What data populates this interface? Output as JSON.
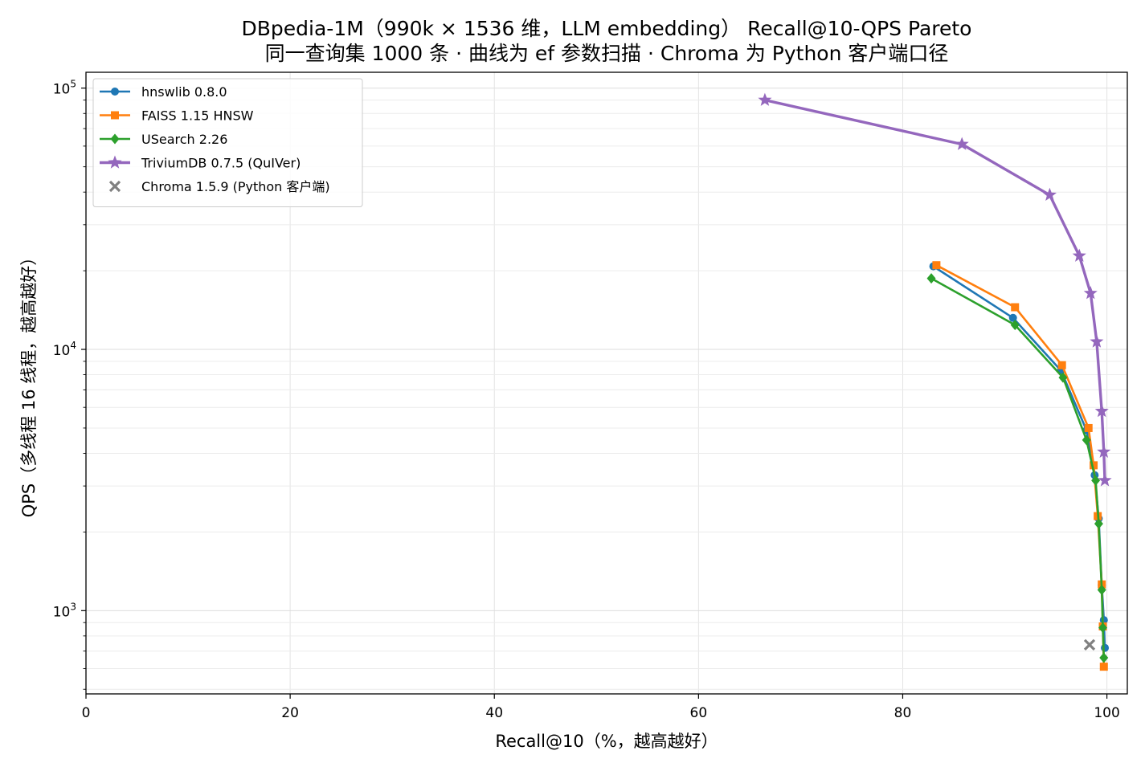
{
  "chart_data": {
    "type": "line",
    "title": "DBpedia-1M（990k × 1536 维，LLM embedding） Recall@10-QPS Pareto",
    "subtitle": "同一查询集 1000 条 · 曲线为 ef 参数扫描 · Chroma 为 Python 客户端口径",
    "xlabel": "Recall@10（%，越高越好）",
    "ylabel": "QPS（多线程 16 线程，越高越好）",
    "xlim": [
      0,
      102
    ],
    "ylim": [
      480,
      115000
    ],
    "yscale": "log",
    "grid": true,
    "legend_position": "upper-left",
    "x_ticks": [
      0,
      20,
      40,
      60,
      80,
      100
    ],
    "y_ticks": [
      {
        "value": 1000,
        "mantissa": "10",
        "exp": "3"
      },
      {
        "value": 10000,
        "mantissa": "10",
        "exp": "4"
      },
      {
        "value": 100000,
        "mantissa": "10",
        "exp": "5"
      }
    ],
    "series": [
      {
        "name": "hnswlib 0.8.0",
        "color": "#1f77b4",
        "marker": "circle",
        "line": true,
        "x": [
          83.0,
          90.8,
          95.5,
          98.0,
          98.8,
          99.2,
          99.5,
          99.7,
          99.8
        ],
        "y": [
          20800,
          13200,
          8300,
          4900,
          3300,
          2250,
          1250,
          920,
          720
        ]
      },
      {
        "name": "FAISS 1.15 HNSW",
        "color": "#ff7f0e",
        "marker": "square",
        "line": true,
        "x": [
          83.3,
          91.0,
          95.6,
          98.2,
          98.7,
          99.1,
          99.5,
          99.6,
          99.7
        ],
        "y": [
          21000,
          14500,
          8700,
          5000,
          3600,
          2300,
          1260,
          870,
          610
        ]
      },
      {
        "name": "USearch 2.26",
        "color": "#2ca02c",
        "marker": "diamond",
        "line": true,
        "x": [
          82.8,
          91.0,
          95.7,
          98.0,
          98.9,
          99.2,
          99.5,
          99.6,
          99.7
        ],
        "y": [
          18700,
          12400,
          7800,
          4500,
          3150,
          2150,
          1200,
          860,
          660
        ]
      },
      {
        "name": "TriviumDB 0.7.5 (QuIVer)",
        "color": "#9467bd",
        "marker": "star",
        "line": true,
        "x": [
          66.5,
          85.8,
          94.4,
          97.3,
          98.4,
          99.0,
          99.5,
          99.7,
          99.8
        ],
        "y": [
          90000,
          61000,
          39000,
          22800,
          16400,
          10700,
          5800,
          4050,
          3150
        ]
      },
      {
        "name": "Chroma 1.5.9 (Python 客户端)",
        "color": "#808080",
        "marker": "x",
        "line": false,
        "x": [
          98.3
        ],
        "y": [
          740
        ]
      }
    ]
  }
}
